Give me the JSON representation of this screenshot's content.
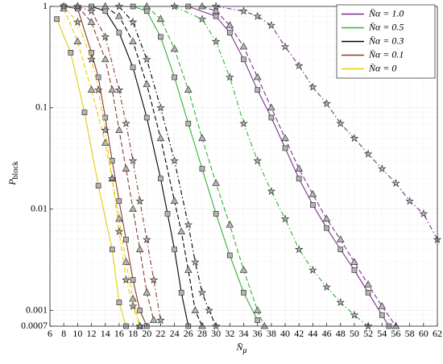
{
  "chart_data": {
    "type": "line",
    "log_y": true,
    "grid": true,
    "legend": "upper right",
    "xlabel": {
      "main": "N̄",
      "sub": "μ"
    },
    "ylabel": {
      "main": "P",
      "sub": "block"
    },
    "xlim": [
      6,
      62
    ],
    "xticks": [
      6,
      8,
      10,
      12,
      14,
      16,
      18,
      20,
      22,
      24,
      26,
      28,
      30,
      32,
      34,
      36,
      38,
      40,
      42,
      44,
      46,
      48,
      50,
      52,
      54,
      56,
      58,
      60,
      62
    ],
    "ylim": [
      0.0007,
      1
    ],
    "yticks": [
      0.0007,
      0.001,
      0.01,
      0.1,
      1
    ],
    "series": [
      {
        "name": "N̄α = 1.0",
        "color": "#7e2f8e",
        "lines": [
          {
            "style": "solid",
            "marker": "square",
            "x": [
              26,
              30,
              32,
              34,
              36,
              38,
              40,
              42,
              44,
              46,
              48,
              50,
              52,
              54,
              55
            ],
            "values": [
              1,
              0.8,
              0.55,
              0.3,
              0.15,
              0.08,
              0.04,
              0.02,
              0.011,
              0.0065,
              0.004,
              0.0025,
              0.0015,
              0.0009,
              0.0007
            ]
          },
          {
            "style": "dashed",
            "marker": "triangle",
            "x": [
              28,
              30,
              32,
              34,
              36,
              38,
              40,
              42,
              44,
              46,
              48,
              50,
              52,
              54,
              56
            ],
            "values": [
              1,
              0.9,
              0.65,
              0.4,
              0.2,
              0.1,
              0.05,
              0.025,
              0.014,
              0.008,
              0.005,
              0.003,
              0.0018,
              0.0011,
              0.0007
            ]
          },
          {
            "style": "dashdot",
            "marker": "star",
            "x": [
              30,
              34,
              36,
              38,
              40,
              42,
              44,
              46,
              48,
              50,
              52,
              54,
              56,
              58,
              60,
              62
            ],
            "values": [
              1,
              0.9,
              0.8,
              0.65,
              0.4,
              0.26,
              0.16,
              0.11,
              0.07,
              0.05,
              0.035,
              0.025,
              0.018,
              0.012,
              0.009,
              0.005
            ]
          }
        ]
      },
      {
        "name": "N̄α = 0.5",
        "color": "#33b233",
        "lines": [
          {
            "style": "solid",
            "marker": "square",
            "x": [
              18,
              20,
              22,
              24,
              26,
              28,
              30,
              32,
              34,
              36
            ],
            "values": [
              1,
              0.9,
              0.5,
              0.2,
              0.07,
              0.025,
              0.009,
              0.0035,
              0.0015,
              0.0008
            ]
          },
          {
            "style": "dashed",
            "marker": "triangle",
            "x": [
              20,
              22,
              24,
              26,
              28,
              30,
              32,
              34,
              36,
              37
            ],
            "values": [
              1,
              0.75,
              0.38,
              0.15,
              0.05,
              0.018,
              0.007,
              0.0025,
              0.001,
              0.0007
            ]
          },
          {
            "style": "dashdot",
            "marker": "star",
            "x": [
              24,
              28,
              30,
              32,
              34,
              36,
              38,
              40,
              42,
              44,
              46,
              48,
              50,
              52
            ],
            "values": [
              1,
              0.75,
              0.45,
              0.2,
              0.07,
              0.03,
              0.015,
              0.008,
              0.004,
              0.0025,
              0.0017,
              0.0012,
              0.0009,
              0.0007
            ]
          }
        ]
      },
      {
        "name": "N̄α = 0.3",
        "color": "#000000",
        "lines": [
          {
            "style": "solid",
            "marker": "square",
            "x": [
              12,
              14,
              16,
              18,
              20,
              22,
              23,
              24,
              25,
              26
            ],
            "values": [
              1,
              0.9,
              0.55,
              0.25,
              0.08,
              0.02,
              0.009,
              0.004,
              0.0015,
              0.0007
            ]
          },
          {
            "style": "dashed",
            "marker": "triangle",
            "x": [
              14,
              16,
              18,
              20,
              22,
              24,
              25,
              26,
              27,
              28
            ],
            "values": [
              1,
              0.8,
              0.45,
              0.17,
              0.05,
              0.012,
              0.006,
              0.0025,
              0.001,
              0.0007
            ]
          },
          {
            "style": "dashdot",
            "marker": "star",
            "x": [
              16,
              18,
              20,
              22,
              24,
              26,
              27,
              28,
              29,
              30
            ],
            "values": [
              1,
              0.7,
              0.3,
              0.1,
              0.03,
              0.007,
              0.003,
              0.0015,
              0.001,
              0.0007
            ]
          }
        ]
      },
      {
        "name": "N̄α = 0.1",
        "color": "#8b3a2b",
        "lines": [
          {
            "style": "solid",
            "marker": "square",
            "x": [
              8,
              10,
              12,
              13,
              14,
              15,
              16,
              17,
              18,
              19,
              20
            ],
            "values": [
              1,
              0.95,
              0.35,
              0.2,
              0.08,
              0.03,
              0.012,
              0.005,
              0.002,
              0.001,
              0.0007
            ]
          },
          {
            "style": "dashed",
            "marker": "triangle",
            "x": [
              10,
              12,
              14,
              15,
              16,
              17,
              18,
              19,
              20,
              21
            ],
            "values": [
              1,
              0.7,
              0.3,
              0.15,
              0.06,
              0.025,
              0.01,
              0.004,
              0.0015,
              0.0008
            ]
          },
          {
            "style": "dashdot",
            "marker": "star",
            "x": [
              10,
              12,
              14,
              16,
              17,
              18,
              19,
              20,
              21,
              22
            ],
            "values": [
              1,
              0.9,
              0.5,
              0.15,
              0.07,
              0.03,
              0.012,
              0.005,
              0.002,
              0.0008
            ]
          }
        ]
      },
      {
        "name": "N̄α = 0",
        "color": "#e6cc00",
        "lines": [
          {
            "style": "solid",
            "marker": "square",
            "x": [
              7,
              9,
              11,
              13,
              15,
              16,
              17
            ],
            "values": [
              0.75,
              0.35,
              0.09,
              0.017,
              0.004,
              0.0012,
              0.0007
            ]
          },
          {
            "style": "dashed",
            "marker": "triangle",
            "x": [
              8,
              10,
              12,
              14,
              15,
              16,
              17,
              18,
              19
            ],
            "values": [
              0.95,
              0.45,
              0.15,
              0.045,
              0.02,
              0.008,
              0.003,
              0.0013,
              0.0007
            ]
          },
          {
            "style": "dashdot",
            "marker": "star",
            "x": [
              8,
              10,
              12,
              13,
              14,
              15,
              16,
              17,
              18,
              19
            ],
            "values": [
              1,
              0.7,
              0.3,
              0.15,
              0.06,
              0.02,
              0.006,
              0.002,
              0.0011,
              0.0007
            ]
          }
        ]
      }
    ]
  }
}
